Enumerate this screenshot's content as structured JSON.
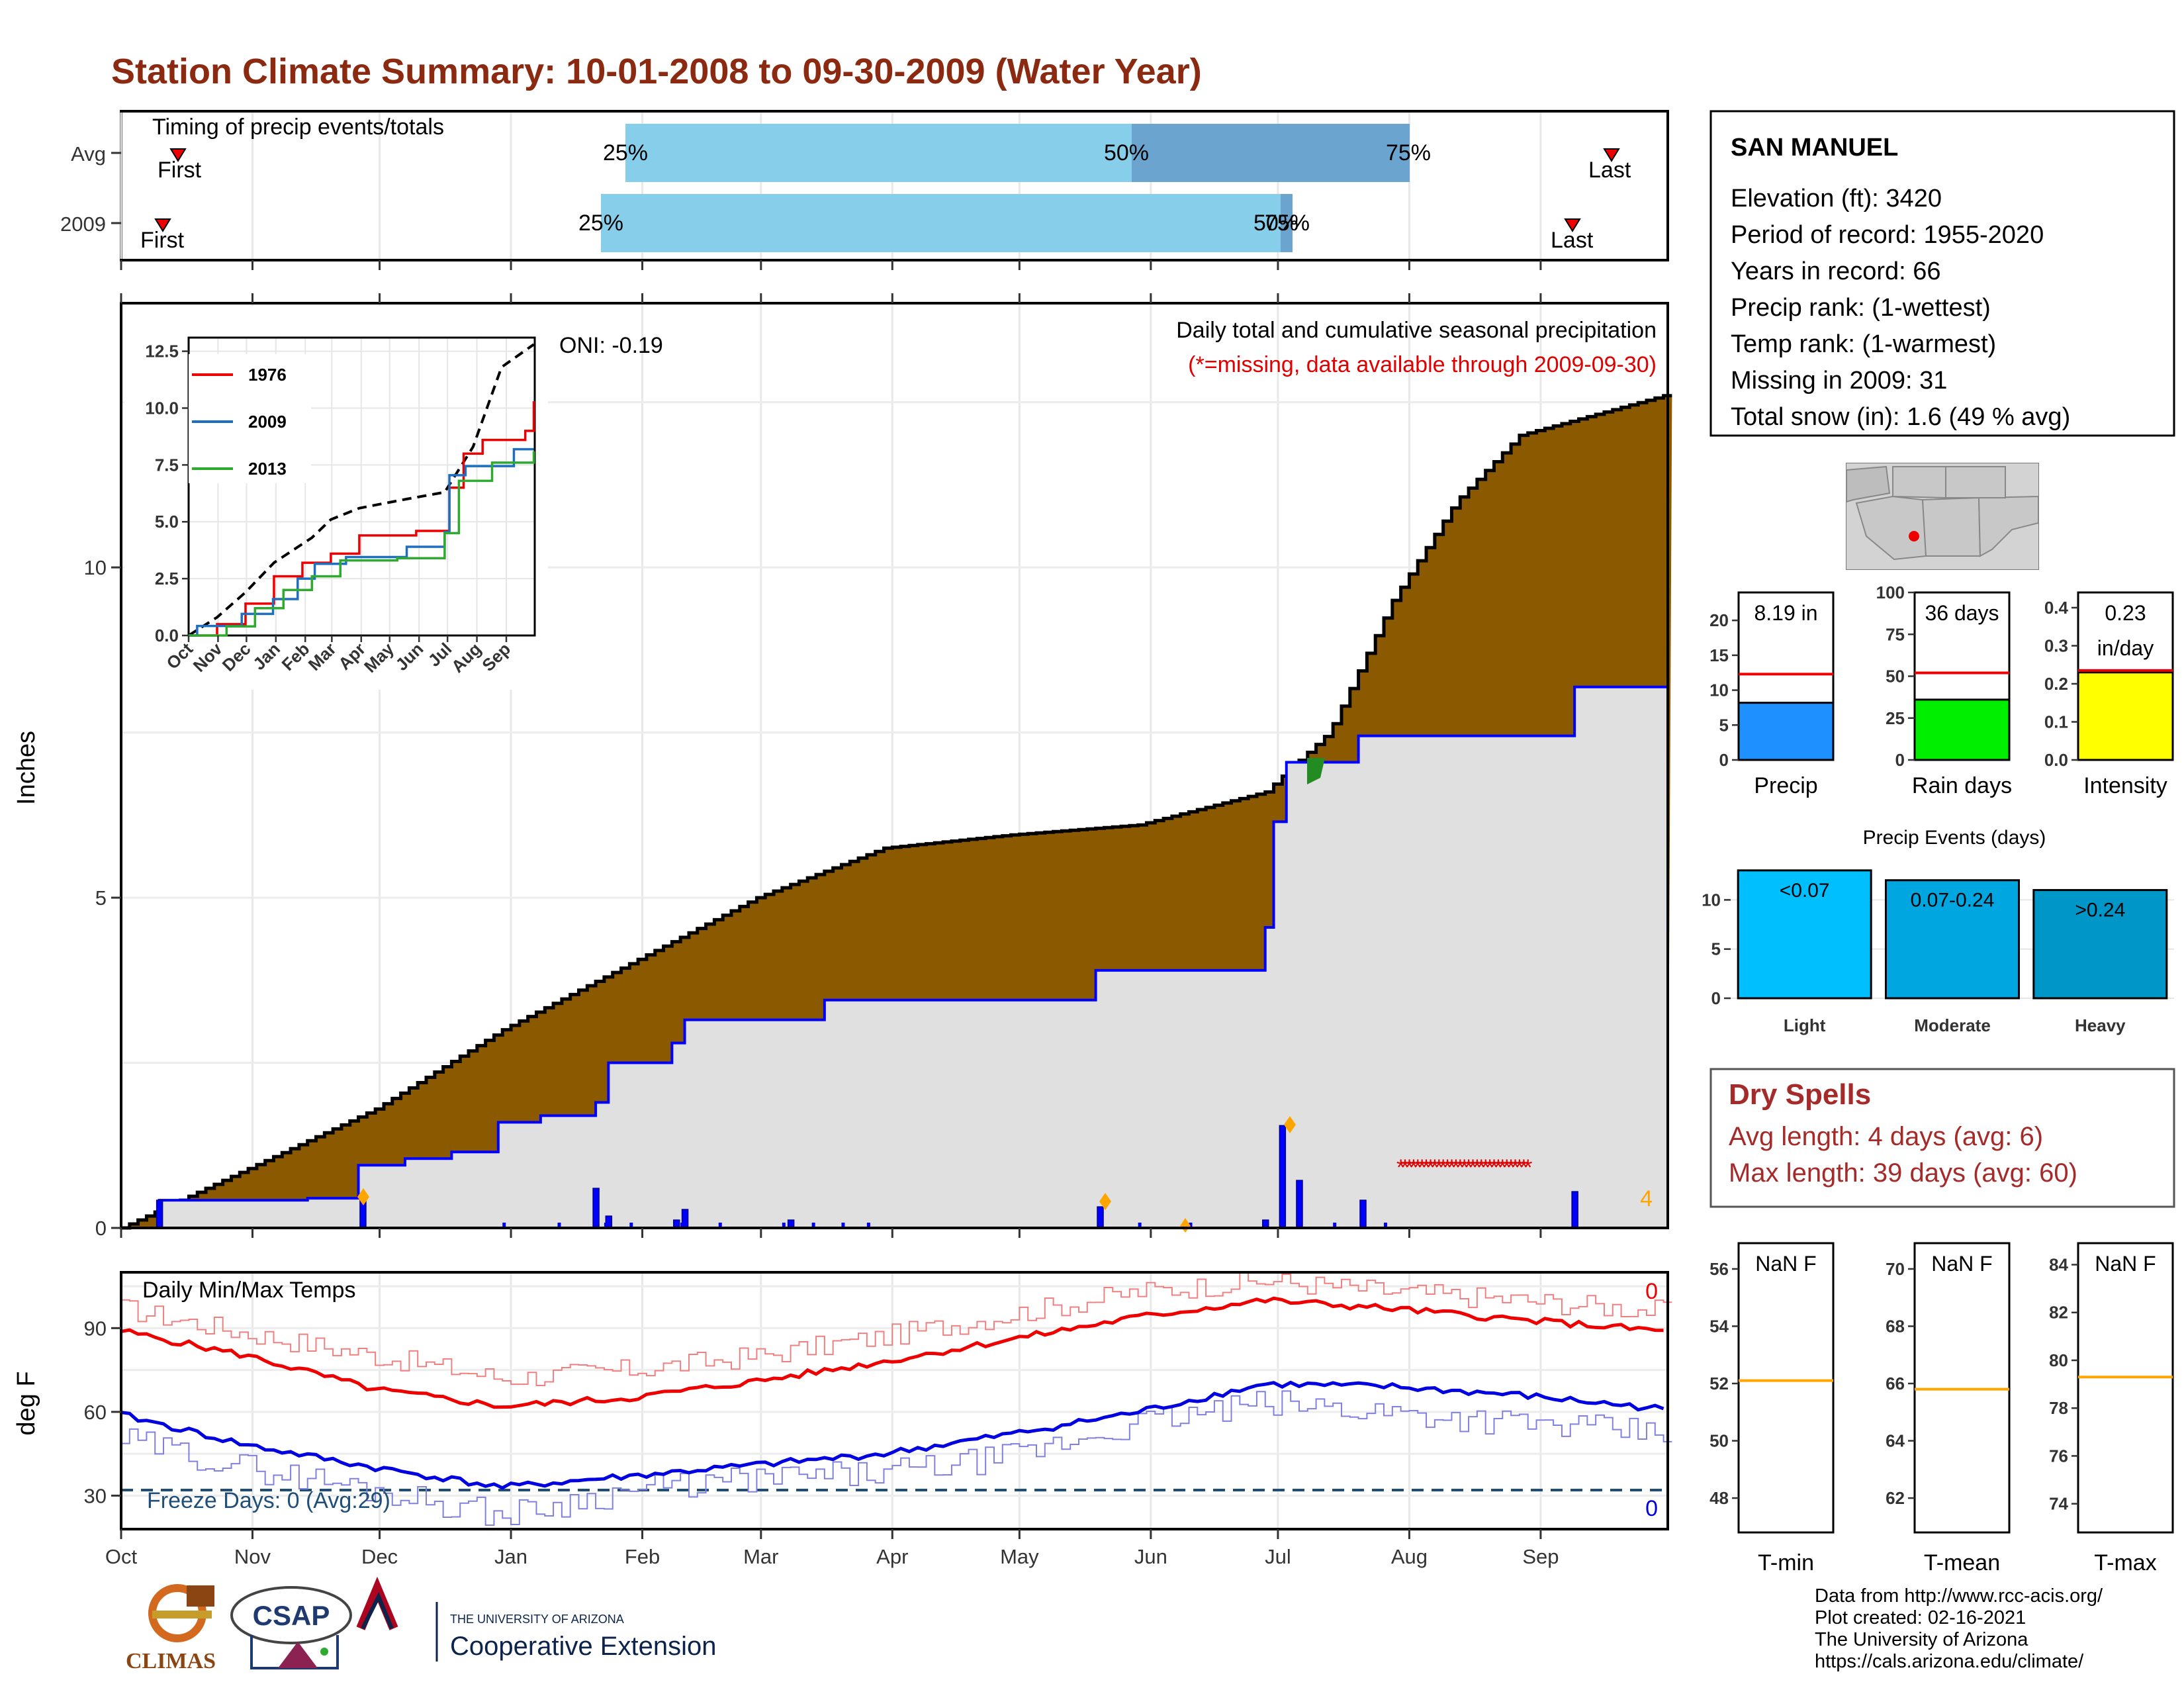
{
  "title": "Station Climate Summary: 10-01-2008 to 09-30-2009 (Water Year)",
  "timing": {
    "panel_title": "Timing of precip events/totals",
    "rows": [
      {
        "label": "Avg",
        "first": "First",
        "last": "Last",
        "p25": "25%",
        "p50": "50%",
        "p75": "75%"
      },
      {
        "label": "2009",
        "first": "First",
        "last": "Last",
        "p25": "25%",
        "p50": "50%",
        "p75": "75%"
      }
    ]
  },
  "main": {
    "y_label": "Inches",
    "oni": "ONI: -0.19",
    "caption": "Daily total and cumulative seasonal precipitation",
    "missing_note": "(*=missing, data available through 2009-09-30)",
    "corner_count": "4",
    "y_ticks": [
      "0",
      "5",
      "10"
    ],
    "months": [
      "Oct",
      "Nov",
      "Dec",
      "Jan",
      "Feb",
      "Mar",
      "Apr",
      "May",
      "Jun",
      "Jul",
      "Aug",
      "Sep"
    ]
  },
  "inset": {
    "legend": [
      "1976",
      "2009",
      "2013"
    ],
    "y_ticks": [
      "0.0",
      "2.5",
      "5.0",
      "7.5",
      "10.0",
      "12.5"
    ],
    "months": [
      "Oct",
      "Nov",
      "Dec",
      "Jan",
      "Feb",
      "Mar",
      "Apr",
      "May",
      "Jun",
      "Jul",
      "Aug",
      "Sep"
    ]
  },
  "temps": {
    "panel_title": "Daily Min/Max Temps",
    "y_label": "deg F",
    "y_ticks": [
      "30",
      "60",
      "90"
    ],
    "freeze": "Freeze Days: 0 (Avg:29)",
    "top_count": "0",
    "bottom_count": "0"
  },
  "station": {
    "name": "SAN MANUEL",
    "lines": [
      "Elevation (ft): 3420",
      "Period of record: 1955-2020",
      "Years in record: 66",
      "Precip rank:  (1-wettest)",
      "Temp rank:  (1-warmest)",
      "Missing in 2009: 31",
      "Total snow (in): 1.6 (49 % avg)"
    ]
  },
  "gauges": [
    {
      "name": "Precip",
      "value_text": "8.19 in",
      "value": 8.19,
      "avg": 12.3,
      "ymax": 24,
      "ticks": [
        "0",
        "5",
        "10",
        "15",
        "20"
      ],
      "color": "#1e90ff"
    },
    {
      "name": "Rain days",
      "value_text": "36 days",
      "value": 36,
      "avg": 52,
      "ymax": 100,
      "ticks": [
        "0",
        "25",
        "50",
        "75",
        "100"
      ],
      "color": "#00ee00"
    },
    {
      "name": "Intensity",
      "value_text": "0.23",
      "value_text2": "in/day",
      "value": 0.23,
      "avg": 0.235,
      "ymax": 0.44,
      "ticks": [
        "0.0",
        "0.1",
        "0.2",
        "0.3",
        "0.4"
      ],
      "color": "#ffff00"
    }
  ],
  "events": {
    "title": "Precip Events (days)",
    "ticks": [
      "0",
      "5",
      "10"
    ],
    "bars": [
      {
        "cat": "Light",
        "range": "<0.07",
        "value": 13,
        "color": "#00bfff"
      },
      {
        "cat": "Moderate",
        "range": "0.07-0.24",
        "value": 12,
        "color": "#00a6e0"
      },
      {
        "cat": "Heavy",
        "range": ">0.24",
        "value": 11,
        "color": "#0096c7"
      }
    ]
  },
  "dry_spells": {
    "title": "Dry Spells",
    "avg": "Avg length: 4 days (avg: 6)",
    "max": "Max length: 39 days (avg: 60)"
  },
  "temp_gauges": [
    {
      "name": "T-min",
      "value": "NaN F",
      "ticks": [
        "48",
        "50",
        "52",
        "54",
        "56"
      ],
      "avg_tick": 52.1
    },
    {
      "name": "T-mean",
      "value": "NaN F",
      "ticks": [
        "62",
        "64",
        "66",
        "68",
        "70"
      ],
      "avg_tick": 65.8
    },
    {
      "name": "T-max",
      "value": "NaN F",
      "ticks": [
        "74",
        "76",
        "78",
        "80",
        "82",
        "84"
      ],
      "avg_tick": 79.3
    }
  ],
  "logos": {
    "climas": "CLIMAS",
    "csap": "CSAP",
    "ua_small": "THE UNIVERSITY OF ARIZONA",
    "ua_big": "Cooperative Extension"
  },
  "credits": [
    "Data from http://www.rcc-acis.org/",
    "Plot created: 02-16-2021",
    "The University of Arizona",
    "https://cals.arizona.edu/climate/"
  ],
  "chart_data": {
    "type": "area",
    "title": "Station Climate Summary: 10-01-2008 to 09-30-2009 (Water Year)",
    "ylabel": "Inches",
    "ylim": [
      0,
      14
    ],
    "x_unit": "day of water year (Oct 1 = 0)",
    "avg_cumulative": [
      [
        0,
        0
      ],
      [
        30,
        0.9
      ],
      [
        60,
        1.8
      ],
      [
        90,
        3.0
      ],
      [
        120,
        4.0
      ],
      [
        150,
        5.0
      ],
      [
        180,
        5.75
      ],
      [
        210,
        5.95
      ],
      [
        240,
        6.1
      ],
      [
        270,
        6.6
      ],
      [
        285,
        7.5
      ],
      [
        300,
        9.5
      ],
      [
        315,
        11
      ],
      [
        330,
        12
      ],
      [
        364,
        12.6
      ]
    ],
    "cumulative_2009": [
      [
        0,
        0
      ],
      [
        9,
        0.42
      ],
      [
        44,
        0.45
      ],
      [
        56,
        0.95
      ],
      [
        67,
        1.05
      ],
      [
        78,
        1.15
      ],
      [
        89,
        1.6
      ],
      [
        99,
        1.7
      ],
      [
        112,
        1.9
      ],
      [
        115,
        2.5
      ],
      [
        130,
        2.8
      ],
      [
        133,
        3.15
      ],
      [
        166,
        3.45
      ],
      [
        228,
        3.45
      ],
      [
        230,
        3.9
      ],
      [
        268,
        3.9
      ],
      [
        270,
        4.55
      ],
      [
        272,
        6.15
      ],
      [
        275,
        7.05
      ],
      [
        292,
        7.45
      ],
      [
        340,
        7.45
      ],
      [
        343,
        8.19
      ],
      [
        364,
        8.19
      ]
    ],
    "daily_precip": [
      [
        9,
        0.42
      ],
      [
        57,
        0.46
      ],
      [
        112,
        0.6
      ],
      [
        115,
        0.18
      ],
      [
        131,
        0.12
      ],
      [
        133,
        0.28
      ],
      [
        158,
        0.12
      ],
      [
        231,
        0.32
      ],
      [
        270,
        0.12
      ],
      [
        274,
        1.55
      ],
      [
        278,
        0.72
      ],
      [
        293,
        0.42
      ],
      [
        343,
        0.55
      ]
    ],
    "missing_days_range": [
      302,
      332
    ],
    "inset": {
      "type": "line",
      "series": [
        {
          "name": "1976",
          "points": [
            [
              0,
              0
            ],
            [
              30,
              0.5
            ],
            [
              60,
              1.4
            ],
            [
              90,
              2.6
            ],
            [
              120,
              3.2
            ],
            [
              150,
              3.6
            ],
            [
              180,
              4.4
            ],
            [
              210,
              4.4
            ],
            [
              240,
              4.6
            ],
            [
              275,
              6.5
            ],
            [
              290,
              8.0
            ],
            [
              310,
              8.6
            ],
            [
              355,
              9.0
            ],
            [
              364,
              10.3
            ]
          ]
        },
        {
          "name": "2009",
          "points": [
            [
              0,
              0
            ],
            [
              9,
              0.42
            ],
            [
              56,
              0.95
            ],
            [
              89,
              1.6
            ],
            [
              115,
              2.5
            ],
            [
              133,
              3.15
            ],
            [
              166,
              3.45
            ],
            [
              230,
              3.9
            ],
            [
              270,
              4.55
            ],
            [
              275,
              7.05
            ],
            [
              292,
              7.45
            ],
            [
              343,
              8.19
            ],
            [
              364,
              8.19
            ]
          ]
        },
        {
          "name": "2013",
          "points": [
            [
              0,
              0
            ],
            [
              40,
              0.4
            ],
            [
              70,
              1.2
            ],
            [
              100,
              2.0
            ],
            [
              130,
              2.6
            ],
            [
              160,
              3.3
            ],
            [
              220,
              3.4
            ],
            [
              270,
              4.5
            ],
            [
              285,
              6.8
            ],
            [
              320,
              7.6
            ],
            [
              364,
              8.1
            ]
          ]
        }
      ],
      "average_dashed": [
        [
          0,
          0
        ],
        [
          30,
          0.8
        ],
        [
          60,
          1.9
        ],
        [
          90,
          3.2
        ],
        [
          130,
          4.3
        ],
        [
          150,
          5.1
        ],
        [
          180,
          5.6
        ],
        [
          230,
          6.0
        ],
        [
          270,
          6.3
        ],
        [
          300,
          8.3
        ],
        [
          330,
          11.8
        ],
        [
          364,
          12.8
        ]
      ]
    },
    "temperatures": {
      "ylim": [
        18,
        110
      ],
      "avg_max": [
        [
          0,
          89
        ],
        [
          30,
          80
        ],
        [
          60,
          68
        ],
        [
          90,
          62
        ],
        [
          120,
          65
        ],
        [
          150,
          71
        ],
        [
          180,
          78
        ],
        [
          210,
          86
        ],
        [
          240,
          94
        ],
        [
          270,
          100
        ],
        [
          300,
          97
        ],
        [
          330,
          93
        ],
        [
          364,
          89
        ]
      ],
      "obs_max": [
        [
          0,
          97
        ],
        [
          30,
          88
        ],
        [
          60,
          80
        ],
        [
          90,
          72
        ],
        [
          120,
          75
        ],
        [
          150,
          80
        ],
        [
          180,
          87
        ],
        [
          210,
          95
        ],
        [
          240,
          103
        ],
        [
          270,
          107
        ],
        [
          300,
          103
        ],
        [
          330,
          100
        ],
        [
          364,
          96
        ]
      ],
      "avg_min": [
        [
          0,
          59
        ],
        [
          30,
          48
        ],
        [
          60,
          40
        ],
        [
          90,
          33
        ],
        [
          120,
          37
        ],
        [
          150,
          41
        ],
        [
          180,
          45
        ],
        [
          210,
          52
        ],
        [
          240,
          60
        ],
        [
          270,
          70
        ],
        [
          300,
          69
        ],
        [
          330,
          66
        ],
        [
          364,
          61
        ]
      ],
      "obs_min": [
        [
          0,
          50
        ],
        [
          30,
          40
        ],
        [
          60,
          32
        ],
        [
          90,
          23
        ],
        [
          120,
          32
        ],
        [
          150,
          36
        ],
        [
          180,
          38
        ],
        [
          210,
          44
        ],
        [
          240,
          56
        ],
        [
          270,
          63
        ],
        [
          300,
          60
        ],
        [
          330,
          56
        ],
        [
          364,
          52
        ]
      ],
      "freeze_line": 32
    }
  }
}
